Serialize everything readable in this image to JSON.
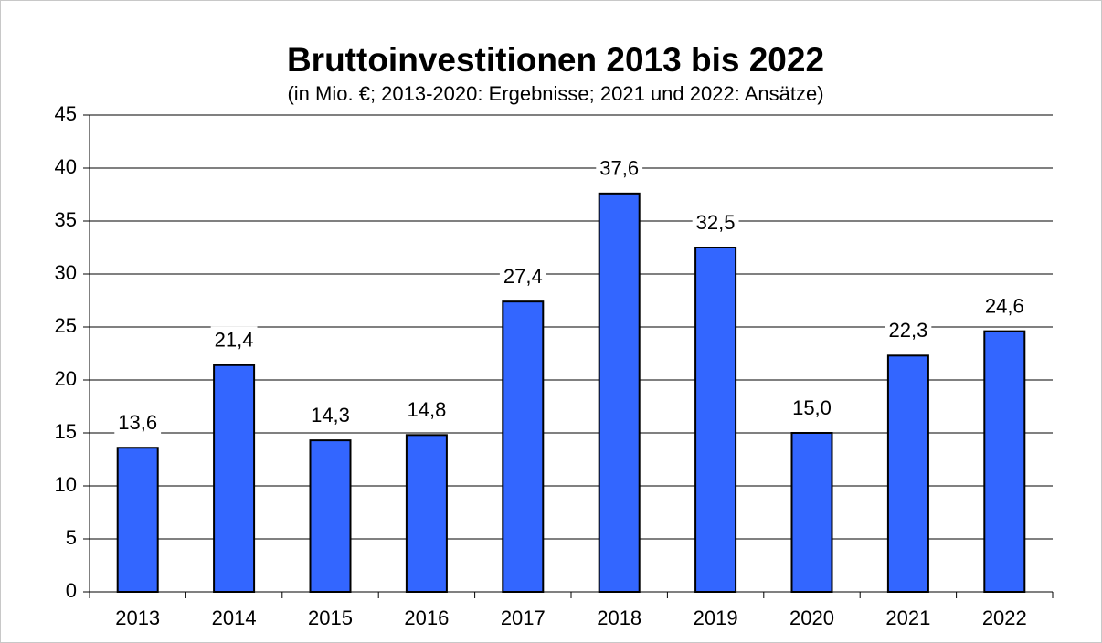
{
  "chart_data": {
    "type": "bar",
    "title": "Bruttoinvestitionen 2013 bis 2022",
    "subtitle": "(in Mio. €; 2013-2020: Ergebnisse; 2021 und 2022: Ansätze)",
    "categories": [
      "2013",
      "2014",
      "2015",
      "2016",
      "2017",
      "2018",
      "2019",
      "2020",
      "2021",
      "2022"
    ],
    "values": [
      13.6,
      21.4,
      14.3,
      14.8,
      27.4,
      37.6,
      32.5,
      15.0,
      22.3,
      24.6
    ],
    "value_labels": [
      "13,6",
      "21,4",
      "14,3",
      "14,8",
      "27,4",
      "37,6",
      "32,5",
      "15,0",
      "22,3",
      "24,6"
    ],
    "color": "#3366ff",
    "ylim": [
      0,
      45
    ],
    "yticks": [
      0,
      5,
      10,
      15,
      20,
      25,
      30,
      35,
      40,
      45
    ],
    "grid": true
  }
}
